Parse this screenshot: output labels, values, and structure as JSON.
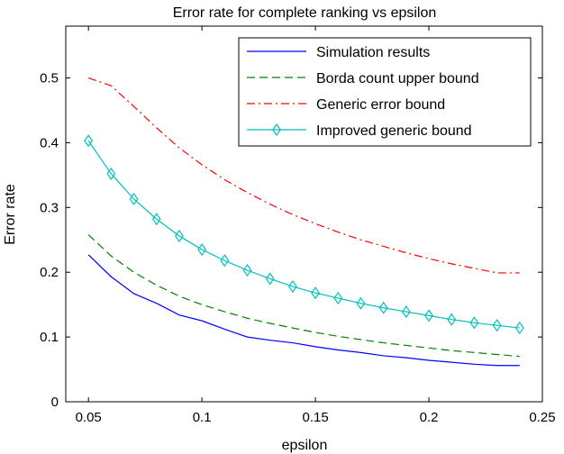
{
  "chart_data": {
    "type": "line",
    "title": "Error rate for complete ranking vs epsilon",
    "xlabel": "epsilon",
    "ylabel": "Error rate",
    "xlim": [
      0.04,
      0.25
    ],
    "ylim": [
      0,
      0.58
    ],
    "xticks": [
      0.05,
      0.1,
      0.15,
      0.2,
      0.25
    ],
    "xtick_labels": [
      "0.05",
      "0.1",
      "0.15",
      "0.2",
      "0.25"
    ],
    "yticks": [
      0,
      0.1,
      0.2,
      0.3,
      0.4,
      0.5
    ],
    "ytick_labels": [
      "0",
      "0.1",
      "0.2",
      "0.3",
      "0.4",
      "0.5"
    ],
    "grid": false,
    "legend_position": "top-right",
    "x": [
      0.05,
      0.06,
      0.07,
      0.08,
      0.09,
      0.1,
      0.11,
      0.12,
      0.13,
      0.14,
      0.15,
      0.16,
      0.17,
      0.18,
      0.19,
      0.2,
      0.21,
      0.22,
      0.23,
      0.24
    ],
    "series": [
      {
        "name": "Simulation results",
        "color": "#0000ff",
        "style": "solid",
        "marker": "none",
        "values": [
          0.227,
          0.193,
          0.167,
          0.152,
          0.134,
          0.125,
          0.112,
          0.1,
          0.095,
          0.091,
          0.085,
          0.08,
          0.076,
          0.071,
          0.068,
          0.064,
          0.061,
          0.058,
          0.056,
          0.056
        ]
      },
      {
        "name": "Borda count upper bound",
        "color": "#008000",
        "style": "dashed",
        "marker": "none",
        "values": [
          0.258,
          0.225,
          0.2,
          0.18,
          0.163,
          0.15,
          0.139,
          0.129,
          0.121,
          0.114,
          0.107,
          0.101,
          0.096,
          0.091,
          0.087,
          0.083,
          0.079,
          0.076,
          0.073,
          0.07
        ]
      },
      {
        "name": "Generic error bound",
        "color": "#ff0000",
        "style": "dashdot",
        "marker": "none",
        "values": [
          0.5,
          0.488,
          0.456,
          0.423,
          0.392,
          0.366,
          0.343,
          0.323,
          0.305,
          0.289,
          0.275,
          0.262,
          0.25,
          0.24,
          0.23,
          0.221,
          0.213,
          0.206,
          0.199,
          0.199
        ]
      },
      {
        "name": "Improved generic bound",
        "color": "#00bfbf",
        "style": "solid",
        "marker": "diamond",
        "values": [
          0.403,
          0.352,
          0.313,
          0.282,
          0.256,
          0.235,
          0.218,
          0.203,
          0.19,
          0.178,
          0.168,
          0.16,
          0.152,
          0.145,
          0.139,
          0.133,
          0.127,
          0.122,
          0.118,
          0.114
        ]
      }
    ]
  }
}
